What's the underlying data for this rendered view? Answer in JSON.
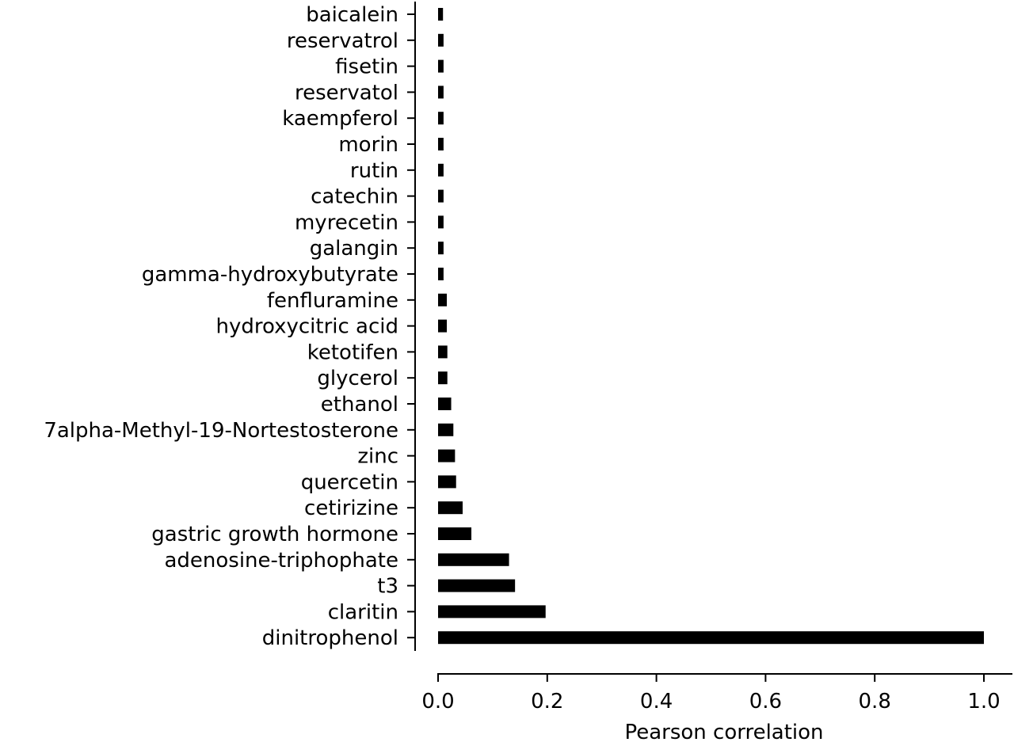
{
  "chart_data": {
    "type": "bar",
    "orientation": "horizontal",
    "categories": [
      "baicalein",
      "reservatrol",
      "fisetin",
      "reservatol",
      "kaempferol",
      "morin",
      "rutin",
      "catechin",
      "myrecetin",
      "galangin",
      "gamma-hydroxybutyrate",
      "fenfluramine",
      "hydroxycitric acid",
      "ketotifen",
      "glycerol",
      "ethanol",
      "7alpha-Methyl-19-Nortestosterone",
      "zinc",
      "quercetin",
      "cetirizine",
      "gastric growth hormone",
      "adenosine-triphophate",
      "t3",
      "claritin",
      "dinitrophenol"
    ],
    "values": [
      0.009,
      0.01,
      0.01,
      0.01,
      0.01,
      0.01,
      0.01,
      0.01,
      0.01,
      0.01,
      0.01,
      0.016,
      0.016,
      0.017,
      0.017,
      0.024,
      0.028,
      0.031,
      0.033,
      0.045,
      0.061,
      0.13,
      0.141,
      0.197,
      1.0
    ],
    "title": "",
    "xlabel": "Pearson correlation",
    "ylabel": "",
    "xlim": [
      0.0,
      1.05
    ],
    "xticks": [
      0.0,
      0.2,
      0.4,
      0.6,
      0.8,
      1.0
    ],
    "xtick_labels": [
      "0.0",
      "0.2",
      "0.4",
      "0.6",
      "0.8",
      "1.0"
    ],
    "bar_color": "#000000",
    "grid": false,
    "legend": "none"
  }
}
